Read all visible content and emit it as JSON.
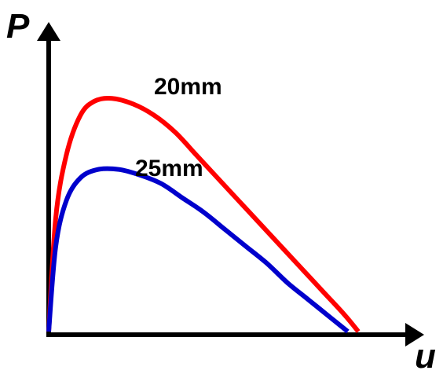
{
  "chart_data": {
    "type": "line",
    "title": "",
    "xlabel": "u",
    "ylabel": "P",
    "grid": false,
    "legend": "none",
    "xlim": [
      0,
      1.0
    ],
    "ylim": [
      0,
      1.0
    ],
    "series": [
      {
        "name": "20mm",
        "color": "#ff0000",
        "x": [
          0.0,
          0.02,
          0.05,
          0.09,
          0.13,
          0.18,
          0.24,
          0.3,
          0.36,
          0.42,
          0.48,
          0.54,
          0.6,
          0.66,
          0.72,
          0.78,
          0.84,
          0.88
        ],
        "y": [
          0.0,
          0.4,
          0.62,
          0.76,
          0.81,
          0.82,
          0.8,
          0.76,
          0.7,
          0.62,
          0.54,
          0.46,
          0.38,
          0.3,
          0.22,
          0.14,
          0.06,
          0.0
        ]
      },
      {
        "name": "25mm",
        "color": "#0000cc",
        "x": [
          0.0,
          0.02,
          0.05,
          0.09,
          0.14,
          0.2,
          0.26,
          0.32,
          0.38,
          0.44,
          0.5,
          0.56,
          0.62,
          0.68,
          0.74,
          0.8,
          0.85
        ],
        "y": [
          0.0,
          0.3,
          0.46,
          0.54,
          0.57,
          0.57,
          0.55,
          0.52,
          0.47,
          0.42,
          0.36,
          0.3,
          0.24,
          0.17,
          0.11,
          0.05,
          0.0
        ]
      }
    ]
  }
}
